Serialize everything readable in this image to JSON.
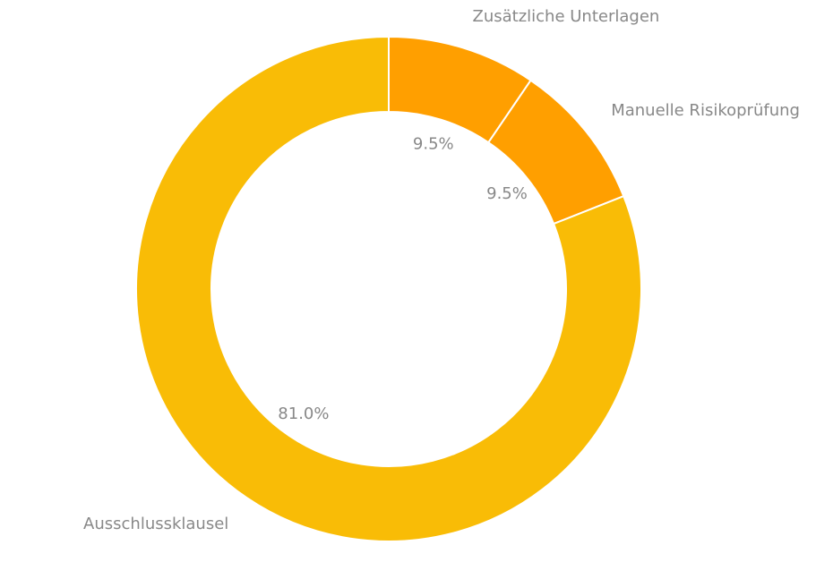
{
  "chart_data": {
    "type": "pie",
    "variant": "donut",
    "title": "",
    "legend": "none",
    "slices": [
      {
        "label": "Zusätzliche Unterlagen",
        "value": 9.5,
        "display": "9.5%",
        "color": "#FF9F00"
      },
      {
        "label": "Manuelle Risikoprüfung",
        "value": 9.5,
        "display": "9.5%",
        "color": "#FF9F00"
      },
      {
        "label": "Ausschlussklausel",
        "value": 81.0,
        "display": "81.0%",
        "color": "#F9BC06"
      }
    ]
  }
}
